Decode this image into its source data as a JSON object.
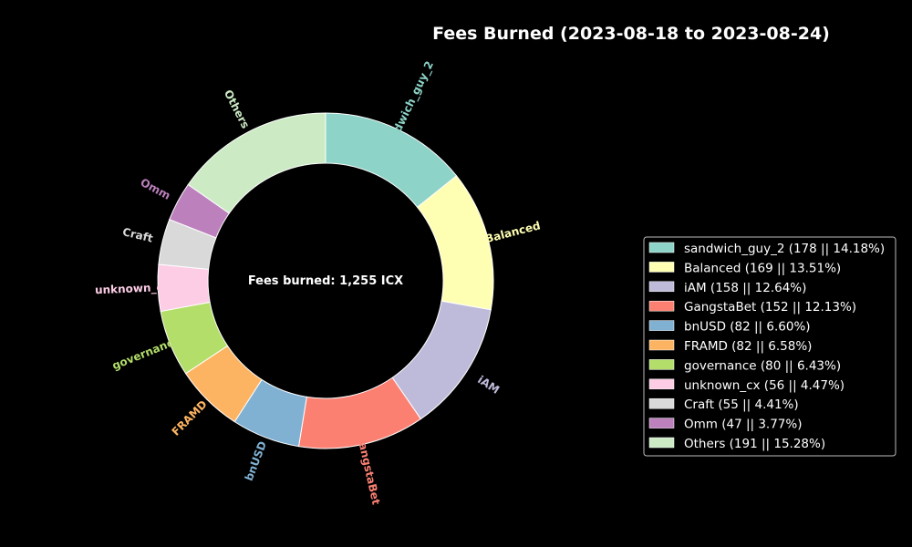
{
  "colors": {
    "background": "#000000",
    "slice_edge": "#ffffff",
    "legend_border": "#bbbbbb",
    "palette": [
      "#8dd3c7",
      "#ffffb3",
      "#bebada",
      "#fb8072",
      "#80b1d3",
      "#fdb462",
      "#b3de69",
      "#fccde5",
      "#d9d9d9",
      "#bc80bd",
      "#ccebc5"
    ]
  },
  "chart_data": {
    "type": "pie",
    "variant": "donut",
    "title": "Fees Burned (2023-08-18 to 2023-08-24)",
    "center_label": "Fees burned: 1,255 ICX",
    "start_angle_deg": 90,
    "direction": "clockwise",
    "legend_placement": "right",
    "slices": [
      {
        "label": "sandwich_guy_2",
        "value": 178,
        "percent": 14.18,
        "legend": "sandwich_guy_2 (178 || 14.18%)"
      },
      {
        "label": "Balanced",
        "value": 169,
        "percent": 13.51,
        "legend": "Balanced (169 || 13.51%)"
      },
      {
        "label": "iAM",
        "value": 158,
        "percent": 12.64,
        "legend": "iAM  (158 || 12.64%)"
      },
      {
        "label": "GangstaBet",
        "value": 152,
        "percent": 12.13,
        "legend": "GangstaBet (152 || 12.13%)"
      },
      {
        "label": "bnUSD",
        "value": 82,
        "percent": 6.6,
        "legend": "bnUSD (82 || 6.60%)"
      },
      {
        "label": "FRAMD",
        "value": 82,
        "percent": 6.58,
        "legend": "FRAMD (82 || 6.58%)"
      },
      {
        "label": "governance",
        "value": 80,
        "percent": 6.43,
        "legend": "governance (80 || 6.43%)"
      },
      {
        "label": "unknown_cx",
        "value": 56,
        "percent": 4.47,
        "legend": "unknown_cx (56 || 4.47%)"
      },
      {
        "label": "Craft",
        "value": 55,
        "percent": 4.41,
        "legend": "Craft (55 || 4.41%)"
      },
      {
        "label": "Omm",
        "value": 47,
        "percent": 3.77,
        "legend": "Omm (47 || 3.77%)"
      },
      {
        "label": "Others",
        "value": 191,
        "percent": 15.28,
        "legend": "Others (191 || 15.28%)"
      }
    ]
  }
}
